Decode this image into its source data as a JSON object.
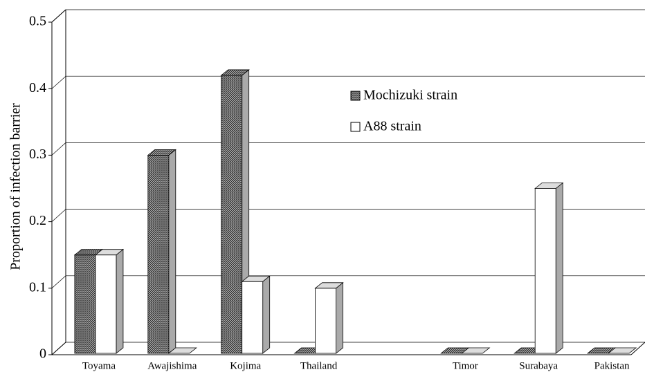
{
  "chart_data": {
    "type": "bar3d",
    "y_label": "Proportion of infection barrier",
    "categories": [
      "Toyama",
      "Awajishima",
      "Kojima",
      "Thailand",
      null,
      "Timor",
      "Surabaya",
      "Pakistan"
    ],
    "series": [
      {
        "name": "Mochizuki strain",
        "color": "#9a9a9a",
        "pattern": "crosshatch",
        "values": [
          0.15,
          0.3,
          0.42,
          0,
          null,
          0,
          0,
          0
        ]
      },
      {
        "name": "A88 strain",
        "color": "#ffffff",
        "values": [
          0.15,
          0,
          0.11,
          0.1,
          null,
          0,
          0.25,
          0
        ]
      }
    ],
    "ylim": [
      0,
      0.5
    ],
    "yticks": [
      0,
      0.1,
      0.2,
      0.3,
      0.4,
      0.5
    ],
    "grid": true
  }
}
